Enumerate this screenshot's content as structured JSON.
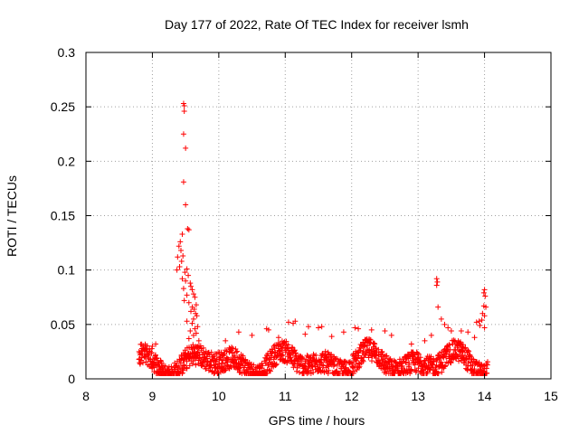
{
  "chart_data": {
    "type": "scatter",
    "title": "Day 177 of 2022, Rate Of TEC Index for receiver lsmh",
    "xlabel": "GPS time / hours",
    "ylabel": "ROTI / TECUs",
    "xlim": [
      8,
      15
    ],
    "ylim": [
      0,
      0.3
    ],
    "x_ticks": [
      8,
      9,
      10,
      11,
      12,
      13,
      14,
      15
    ],
    "x_tick_labels": [
      "8",
      "9",
      "10",
      "11",
      "12",
      "13",
      "14",
      "15"
    ],
    "y_ticks": [
      0,
      0.05,
      0.1,
      0.15,
      0.2,
      0.25,
      0.3
    ],
    "y_tick_labels": [
      "0",
      "0.05",
      "0.1",
      "0.15",
      "0.2",
      "0.25",
      "0.3"
    ],
    "grid": true,
    "marker": "+",
    "marker_color": "#ff0000",
    "background_band": {
      "x_range": [
        8.8,
        14.05
      ],
      "y_range": [
        0.005,
        0.045
      ]
    },
    "series": [
      {
        "name": "ROTI",
        "points": [
          [
            9.47,
            0.253
          ],
          [
            9.48,
            0.251
          ],
          [
            9.48,
            0.246
          ],
          [
            9.47,
            0.225
          ],
          [
            9.5,
            0.212
          ],
          [
            9.47,
            0.181
          ],
          [
            9.5,
            0.16
          ],
          [
            9.53,
            0.138
          ],
          [
            9.55,
            0.137
          ],
          [
            9.45,
            0.133
          ],
          [
            9.42,
            0.126
          ],
          [
            9.4,
            0.122
          ],
          [
            9.43,
            0.118
          ],
          [
            9.46,
            0.113
          ],
          [
            9.38,
            0.112
          ],
          [
            9.44,
            0.108
          ],
          [
            9.41,
            0.103
          ],
          [
            9.52,
            0.101
          ],
          [
            9.37,
            0.1
          ],
          [
            9.49,
            0.098
          ],
          [
            9.54,
            0.095
          ],
          [
            9.45,
            0.092
          ],
          [
            9.5,
            0.09
          ],
          [
            9.57,
            0.088
          ],
          [
            9.58,
            0.085
          ],
          [
            9.47,
            0.083
          ],
          [
            9.6,
            0.082
          ],
          [
            9.62,
            0.078
          ],
          [
            9.52,
            0.077
          ],
          [
            9.64,
            0.075
          ],
          [
            9.48,
            0.072
          ],
          [
            9.55,
            0.07
          ],
          [
            9.66,
            0.068
          ],
          [
            9.6,
            0.066
          ],
          [
            9.63,
            0.064
          ],
          [
            9.58,
            0.062
          ],
          [
            9.65,
            0.06
          ],
          [
            9.67,
            0.058
          ],
          [
            9.62,
            0.055
          ],
          [
            9.52,
            0.053
          ],
          [
            9.6,
            0.051
          ],
          [
            9.68,
            0.048
          ],
          [
            9.64,
            0.046
          ],
          [
            9.57,
            0.044
          ],
          [
            9.66,
            0.042
          ],
          [
            9.62,
            0.04
          ],
          [
            9.55,
            0.037
          ],
          [
            9.7,
            0.035
          ],
          [
            13.28,
            0.092
          ],
          [
            13.29,
            0.089
          ],
          [
            13.28,
            0.086
          ],
          [
            13.3,
            0.066
          ],
          [
            13.35,
            0.055
          ],
          [
            13.4,
            0.05
          ],
          [
            13.45,
            0.047
          ],
          [
            13.5,
            0.044
          ],
          [
            14.0,
            0.082
          ],
          [
            13.99,
            0.079
          ],
          [
            14.01,
            0.076
          ],
          [
            13.99,
            0.067
          ],
          [
            14.02,
            0.066
          ],
          [
            13.97,
            0.06
          ],
          [
            14.0,
            0.058
          ],
          [
            13.96,
            0.054
          ],
          [
            13.92,
            0.053
          ],
          [
            13.88,
            0.052
          ],
          [
            13.93,
            0.049
          ],
          [
            14.0,
            0.047
          ],
          [
            10.3,
            0.043
          ],
          [
            10.72,
            0.046
          ],
          [
            10.75,
            0.045
          ],
          [
            11.05,
            0.052
          ],
          [
            11.12,
            0.051
          ],
          [
            11.15,
            0.053
          ],
          [
            11.35,
            0.048
          ],
          [
            11.5,
            0.047
          ],
          [
            11.55,
            0.048
          ],
          [
            11.88,
            0.043
          ],
          [
            12.05,
            0.047
          ],
          [
            12.1,
            0.046
          ],
          [
            12.3,
            0.045
          ],
          [
            12.5,
            0.044
          ],
          [
            12.6,
            0.04
          ],
          [
            13.1,
            0.035
          ],
          [
            13.65,
            0.044
          ],
          [
            13.75,
            0.043
          ],
          [
            8.8,
            0.025
          ],
          [
            9.05,
            0.032
          ],
          [
            9.0,
            0.03
          ],
          [
            10.1,
            0.035
          ],
          [
            10.5,
            0.04
          ],
          [
            10.9,
            0.038
          ],
          [
            11.3,
            0.041
          ],
          [
            11.7,
            0.039
          ],
          [
            12.2,
            0.036
          ],
          [
            12.9,
            0.032
          ],
          [
            13.2,
            0.04
          ],
          [
            13.85,
            0.038
          ]
        ]
      }
    ]
  }
}
